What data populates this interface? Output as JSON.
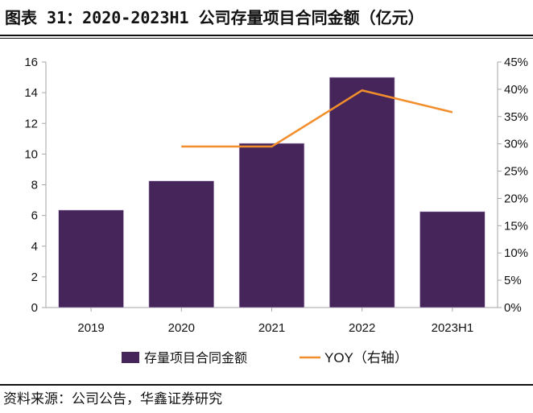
{
  "title": "图表 31：2020-2023H1 公司存量项目合同金额（亿元）",
  "source": "资料来源：公司公告，华鑫证券研究",
  "chart_data": {
    "type": "bar+line",
    "title": "2020-2023H1 公司存量项目合同金额（亿元）",
    "categories": [
      "2019",
      "2020",
      "2021",
      "2022",
      "2023H1"
    ],
    "series": [
      {
        "name": "存量项目合同金额",
        "type": "bar",
        "axis": "left",
        "color": "#46265a",
        "values": [
          6.35,
          8.25,
          10.7,
          15.0,
          6.25
        ]
      },
      {
        "name": "YOY（右轴）",
        "type": "line",
        "axis": "right",
        "color": "#f28e2b",
        "values": [
          null,
          0.295,
          0.295,
          0.398,
          0.358
        ]
      }
    ],
    "y_left": {
      "range": [
        0,
        16
      ],
      "ticks": [
        "0",
        "2",
        "4",
        "6",
        "8",
        "10",
        "12",
        "14",
        "16"
      ],
      "tick_values": [
        0,
        2,
        4,
        6,
        8,
        10,
        12,
        14,
        16
      ]
    },
    "y_right": {
      "range": [
        0,
        0.45
      ],
      "ticks": [
        "0%",
        "5%",
        "10%",
        "15%",
        "20%",
        "25%",
        "30%",
        "35%",
        "40%",
        "45%"
      ],
      "tick_values": [
        0,
        0.05,
        0.1,
        0.15,
        0.2,
        0.25,
        0.3,
        0.35,
        0.4,
        0.45
      ]
    },
    "xlabel": "",
    "ylabel": "",
    "grid": false,
    "legend": {
      "placement": "bottom",
      "entries": [
        "存量项目合同金额",
        "YOY（右轴）"
      ]
    },
    "axis_color": "#a6a6a6"
  }
}
